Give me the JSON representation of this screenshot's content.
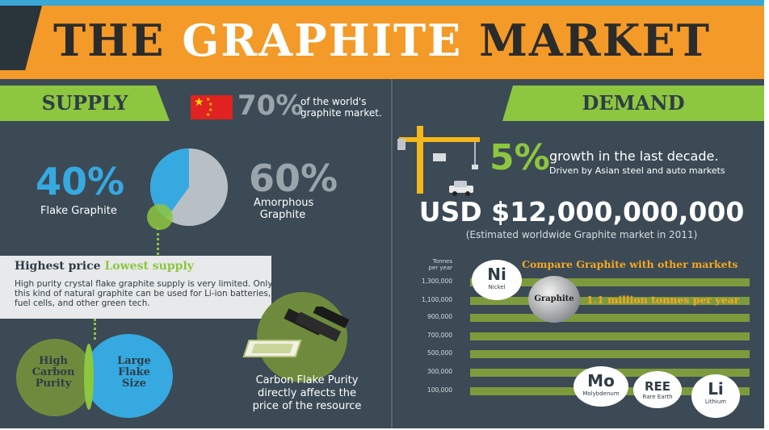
{
  "title": {
    "part1": "THE ",
    "part2": "GRAPHITE",
    "part3": " MARKET"
  },
  "supply": {
    "heading": "SUPPLY",
    "china_pct": "70%",
    "china_text_1": "of the world's",
    "china_text_2": "graphite market.",
    "flake_pct": "40%",
    "flake_label": "Flake Graphite",
    "amorphous_pct": "60%",
    "amorphous_label_1": "Amorphous",
    "amorphous_label_2": "Graphite",
    "flake_share": 40,
    "amorphous_share": 60,
    "callout_head_1": "Highest price ",
    "callout_head_2": "Lowest supply",
    "callout_text": "High purity crystal flake graphite supply is very limited. Only this kind of natural graphite can be used for Li-ion batteries, fuel cells, and other green tech.",
    "venn_left": [
      "High",
      "Carbon",
      "Purity"
    ],
    "venn_right": [
      "Large",
      "Flake",
      "Size"
    ],
    "purity_text": [
      "Carbon Flake Purity",
      "directly affects the",
      "price of the resource"
    ]
  },
  "demand": {
    "heading": "DEMAND",
    "growth_pct": "5%",
    "growth_text": "growth in the last decade.",
    "growth_sub": "Driven by Asian steel and auto markets",
    "market_value": "USD $12,000,000,000",
    "market_note": "(Estimated worldwide Graphite market in 2011)",
    "compare_title": "Compare Graphite with other markets",
    "axis_title_1": "Tonnes",
    "axis_title_2": "per year",
    "ticks": [
      "1,300,000",
      "1,100,000",
      "900,000",
      "700,000",
      "500,000",
      "300,000",
      "100,000"
    ],
    "graphite_label": "Graphite",
    "graphite_value": "1.1 million tonnes per year",
    "elements": [
      {
        "symbol": "Ni",
        "name": "Nickel"
      },
      {
        "symbol": "Mo",
        "name": "Molybdenum"
      },
      {
        "symbol": "REE",
        "name": "Rare Earth"
      },
      {
        "symbol": "Li",
        "name": "Lithium"
      }
    ]
  },
  "colors": {
    "banner": "#f39a28",
    "background": "#3b4a55",
    "green": "#8dc63f",
    "blue": "#36a9e1",
    "grey": "#9aa4ab",
    "flag_red": "#e02222"
  },
  "icons": [
    "china-flag-icon",
    "crane-icon",
    "car-icon",
    "graphite-bars-icon",
    "money-stack-icon"
  ]
}
